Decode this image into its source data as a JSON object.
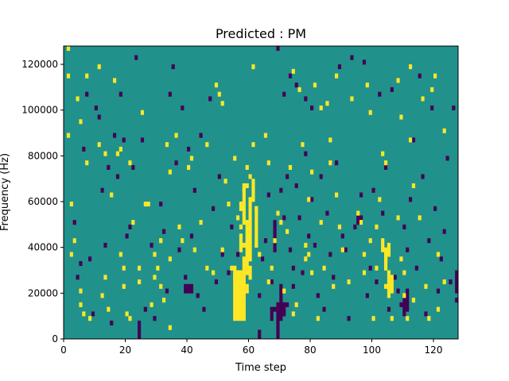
{
  "chart_data": {
    "type": "heatmap",
    "title": "Predicted : PM",
    "xlabel": "Time step",
    "ylabel": "Frequency (Hz)",
    "xlim": [
      0,
      128
    ],
    "ylim": [
      0,
      128000
    ],
    "x_ticks": [
      0,
      20,
      40,
      60,
      80,
      100,
      120
    ],
    "y_ticks": [
      0,
      20000,
      40000,
      60000,
      80000,
      100000,
      120000
    ],
    "y_tick_labels": [
      "0",
      "20000",
      "40000",
      "60000",
      "80000",
      "100000",
      "120000"
    ],
    "n_time_bins": 128,
    "n_freq_bins": 64,
    "bin_height_hz": 2000,
    "value_levels": {
      "low": -1,
      "background": 0,
      "high": 1
    },
    "colors": {
      "low": "#440154",
      "background": "#21918c",
      "high": "#fde725"
    },
    "high_cells": [
      [
        1,
        126000
      ],
      [
        1,
        114000
      ],
      [
        1,
        88000
      ],
      [
        2,
        36000
      ],
      [
        2,
        58000
      ],
      [
        3,
        42000
      ],
      [
        4,
        104000
      ],
      [
        5,
        94000
      ],
      [
        5,
        20000
      ],
      [
        5,
        14000
      ],
      [
        6,
        10000
      ],
      [
        7,
        114000
      ],
      [
        7,
        76000
      ],
      [
        8,
        8000
      ],
      [
        11,
        118000
      ],
      [
        11,
        84000
      ],
      [
        12,
        18000
      ],
      [
        13,
        26000
      ],
      [
        13,
        80000
      ],
      [
        14,
        12000
      ],
      [
        15,
        62000
      ],
      [
        16,
        112000
      ],
      [
        17,
        80000
      ],
      [
        18,
        36000
      ],
      [
        18,
        82000
      ],
      [
        19,
        30000
      ],
      [
        19,
        22000
      ],
      [
        20,
        10000
      ],
      [
        21,
        8000
      ],
      [
        21,
        76000
      ],
      [
        22,
        50000
      ],
      [
        24,
        24000
      ],
      [
        24,
        30000
      ],
      [
        25,
        98000
      ],
      [
        26,
        58000
      ],
      [
        27,
        58000
      ],
      [
        28,
        14000
      ],
      [
        29,
        26000
      ],
      [
        29,
        36000
      ],
      [
        30,
        30000
      ],
      [
        31,
        22000
      ],
      [
        31,
        42000
      ],
      [
        32,
        16000
      ],
      [
        33,
        84000
      ],
      [
        34,
        4000
      ],
      [
        34,
        72000
      ],
      [
        34,
        34000
      ],
      [
        36,
        88000
      ],
      [
        37,
        48000
      ],
      [
        38,
        42000
      ],
      [
        40,
        74000
      ],
      [
        41,
        78000
      ],
      [
        42,
        38000
      ],
      [
        44,
        50000
      ],
      [
        46,
        30000
      ],
      [
        46,
        84000
      ],
      [
        48,
        28000
      ],
      [
        49,
        110000
      ],
      [
        50,
        106000
      ],
      [
        51,
        102000
      ],
      [
        51,
        38000
      ],
      [
        52,
        68000
      ],
      [
        53,
        58000
      ],
      [
        54,
        30000
      ],
      [
        55,
        26000
      ],
      [
        55,
        78000
      ],
      [
        56,
        52000
      ],
      [
        56,
        24000
      ],
      [
        57,
        48000
      ],
      [
        58,
        64000
      ],
      [
        58,
        40000
      ],
      [
        59,
        66000
      ],
      [
        59,
        74000
      ],
      [
        60,
        70000
      ],
      [
        60,
        34000
      ],
      [
        61,
        118000
      ],
      [
        61,
        84000
      ],
      [
        62,
        56000
      ],
      [
        62,
        40000
      ],
      [
        63,
        36000
      ],
      [
        65,
        88000
      ],
      [
        66,
        76000
      ],
      [
        66,
        24000
      ],
      [
        67,
        30000
      ],
      [
        68,
        42000
      ],
      [
        69,
        54000
      ],
      [
        70,
        50000
      ],
      [
        71,
        20000
      ],
      [
        72,
        46000
      ],
      [
        73,
        74000
      ],
      [
        74,
        116000
      ],
      [
        74,
        10000
      ],
      [
        75,
        14000
      ],
      [
        76,
        108000
      ],
      [
        77,
        84000
      ],
      [
        78,
        40000
      ],
      [
        78,
        34000
      ],
      [
        79,
        60000
      ],
      [
        79,
        36000
      ],
      [
        80,
        72000
      ],
      [
        80,
        28000
      ],
      [
        81,
        110000
      ],
      [
        82,
        8000
      ],
      [
        83,
        50000
      ],
      [
        83,
        100000
      ],
      [
        84,
        30000
      ],
      [
        85,
        102000
      ],
      [
        86,
        86000
      ],
      [
        86,
        76000
      ],
      [
        87,
        22000
      ],
      [
        88,
        114000
      ],
      [
        88,
        62000
      ],
      [
        89,
        48000
      ],
      [
        90,
        38000
      ],
      [
        92,
        24000
      ],
      [
        93,
        104000
      ],
      [
        95,
        54000
      ],
      [
        96,
        50000
      ],
      [
        97,
        36000
      ],
      [
        97,
        28000
      ],
      [
        98,
        110000
      ],
      [
        99,
        42000
      ],
      [
        99,
        98000
      ],
      [
        100,
        8000
      ],
      [
        101,
        48000
      ],
      [
        101,
        30000
      ],
      [
        102,
        60000
      ],
      [
        103,
        80000
      ],
      [
        104,
        34000
      ],
      [
        104,
        22000
      ],
      [
        104,
        76000
      ],
      [
        106,
        8000
      ],
      [
        108,
        52000
      ],
      [
        108,
        112000
      ],
      [
        109,
        34000
      ],
      [
        109,
        96000
      ],
      [
        110,
        28000
      ],
      [
        110,
        18000
      ],
      [
        111,
        8000
      ],
      [
        112,
        118000
      ],
      [
        112,
        86000
      ],
      [
        113,
        66000
      ],
      [
        113,
        16000
      ],
      [
        115,
        52000
      ],
      [
        116,
        104000
      ],
      [
        117,
        22000
      ],
      [
        118,
        8000
      ],
      [
        119,
        108000
      ],
      [
        120,
        114000
      ],
      [
        121,
        12000
      ],
      [
        121,
        36000
      ],
      [
        123,
        90000
      ],
      [
        123,
        24000
      ]
    ],
    "high_blocks": [
      [
        55,
        [
          8000,
          32000
        ]
      ],
      [
        56,
        [
          8000,
          30000
        ]
      ],
      [
        57,
        [
          8000,
          30000
        ]
      ],
      [
        57,
        [
          38000,
          46000
        ]
      ],
      [
        57,
        [
          56000,
          60000
        ]
      ],
      [
        58,
        [
          8000,
          36000
        ]
      ],
      [
        58,
        [
          50000,
          68000
        ]
      ],
      [
        59,
        [
          20000,
          24000
        ]
      ],
      [
        59,
        [
          28000,
          52000
        ]
      ],
      [
        60,
        [
          26000,
          32000
        ]
      ],
      [
        60,
        [
          36000,
          62000
        ]
      ],
      [
        61,
        [
          60000,
          70000
        ]
      ],
      [
        62,
        [
          40000,
          58000
        ]
      ],
      [
        103,
        [
          38000,
          44000
        ]
      ],
      [
        104,
        [
          30000,
          40000
        ]
      ],
      [
        105,
        [
          18000,
          30000
        ]
      ],
      [
        105,
        [
          36000,
          42000
        ]
      ],
      [
        106,
        [
          20000,
          28000
        ]
      ]
    ],
    "low_cells": [
      [
        3,
        50000
      ],
      [
        4,
        26000
      ],
      [
        5,
        32000
      ],
      [
        6,
        82000
      ],
      [
        7,
        106000
      ],
      [
        8,
        34000
      ],
      [
        9,
        10000
      ],
      [
        10,
        100000
      ],
      [
        11,
        96000
      ],
      [
        12,
        64000
      ],
      [
        13,
        40000
      ],
      [
        14,
        74000
      ],
      [
        15,
        6000
      ],
      [
        16,
        88000
      ],
      [
        17,
        70000
      ],
      [
        18,
        106000
      ],
      [
        19,
        86000
      ],
      [
        20,
        44000
      ],
      [
        21,
        48000
      ],
      [
        22,
        74000
      ],
      [
        23,
        122000
      ],
      [
        25,
        86000
      ],
      [
        26,
        12000
      ],
      [
        28,
        40000
      ],
      [
        29,
        8000
      ],
      [
        31,
        58000
      ],
      [
        32,
        46000
      ],
      [
        33,
        20000
      ],
      [
        34,
        106000
      ],
      [
        35,
        118000
      ],
      [
        36,
        76000
      ],
      [
        37,
        38000
      ],
      [
        38,
        100000
      ],
      [
        39,
        26000
      ],
      [
        40,
        82000
      ],
      [
        41,
        44000
      ],
      [
        42,
        64000
      ],
      [
        43,
        18000
      ],
      [
        44,
        88000
      ],
      [
        45,
        12000
      ],
      [
        47,
        104000
      ],
      [
        48,
        56000
      ],
      [
        49,
        24000
      ],
      [
        50,
        70000
      ],
      [
        51,
        36000
      ],
      [
        53,
        28000
      ],
      [
        54,
        48000
      ],
      [
        56,
        36000
      ],
      [
        63,
        18000
      ],
      [
        64,
        34000
      ],
      [
        65,
        42000
      ],
      [
        66,
        62000
      ],
      [
        67,
        24000
      ],
      [
        68,
        12000
      ],
      [
        69,
        126000
      ],
      [
        70,
        64000
      ],
      [
        71,
        106000
      ],
      [
        71,
        52000
      ],
      [
        72,
        70000
      ],
      [
        72,
        14000
      ],
      [
        73,
        114000
      ],
      [
        73,
        38000
      ],
      [
        74,
        30000
      ],
      [
        74,
        22000
      ],
      [
        75,
        110000
      ],
      [
        75,
        66000
      ],
      [
        76,
        52000
      ],
      [
        77,
        28000
      ],
      [
        78,
        80000
      ],
      [
        78,
        104000
      ],
      [
        79,
        44000
      ],
      [
        80,
        60000
      ],
      [
        80,
        100000
      ],
      [
        81,
        40000
      ],
      [
        82,
        18000
      ],
      [
        83,
        70000
      ],
      [
        84,
        12000
      ],
      [
        85,
        54000
      ],
      [
        86,
        36000
      ],
      [
        87,
        26000
      ],
      [
        88,
        76000
      ],
      [
        89,
        118000
      ],
      [
        90,
        44000
      ],
      [
        91,
        38000
      ],
      [
        92,
        8000
      ],
      [
        93,
        122000
      ],
      [
        94,
        48000
      ],
      [
        96,
        62000
      ],
      [
        97,
        120000
      ],
      [
        98,
        18000
      ],
      [
        99,
        30000
      ],
      [
        100,
        64000
      ],
      [
        101,
        24000
      ],
      [
        102,
        106000
      ],
      [
        103,
        54000
      ],
      [
        104,
        74000
      ],
      [
        105,
        12000
      ],
      [
        106,
        108000
      ],
      [
        107,
        26000
      ],
      [
        108,
        20000
      ],
      [
        109,
        14000
      ],
      [
        110,
        48000
      ],
      [
        111,
        38000
      ],
      [
        112,
        60000
      ],
      [
        113,
        86000
      ],
      [
        114,
        30000
      ],
      [
        115,
        114000
      ],
      [
        116,
        70000
      ],
      [
        117,
        10000
      ],
      [
        118,
        42000
      ],
      [
        119,
        100000
      ],
      [
        120,
        56000
      ],
      [
        121,
        20000
      ],
      [
        122,
        34000
      ],
      [
        123,
        46000
      ],
      [
        124,
        78000
      ],
      [
        125,
        24000
      ],
      [
        126,
        100000
      ],
      [
        127,
        16000
      ]
    ],
    "low_blocks": [
      [
        24,
        [
          0,
          8000
        ]
      ],
      [
        39,
        [
          20000,
          24000
        ]
      ],
      [
        40,
        [
          20000,
          24000
        ]
      ],
      [
        41,
        [
          20000,
          24000
        ]
      ],
      [
        63,
        [
          0,
          4000
        ]
      ],
      [
        67,
        [
          8000,
          14000
        ]
      ],
      [
        68,
        [
          38000,
          52000
        ]
      ],
      [
        69,
        [
          0,
          16000
        ]
      ],
      [
        70,
        [
          8000,
          24000
        ]
      ],
      [
        71,
        [
          10000,
          16000
        ]
      ],
      [
        95,
        [
          50000,
          54000
        ]
      ],
      [
        96,
        [
          50000,
          54000
        ]
      ],
      [
        110,
        [
          10000,
          18000
        ]
      ],
      [
        111,
        [
          12000,
          22000
        ]
      ],
      [
        127,
        [
          20000,
          30000
        ]
      ]
    ]
  }
}
